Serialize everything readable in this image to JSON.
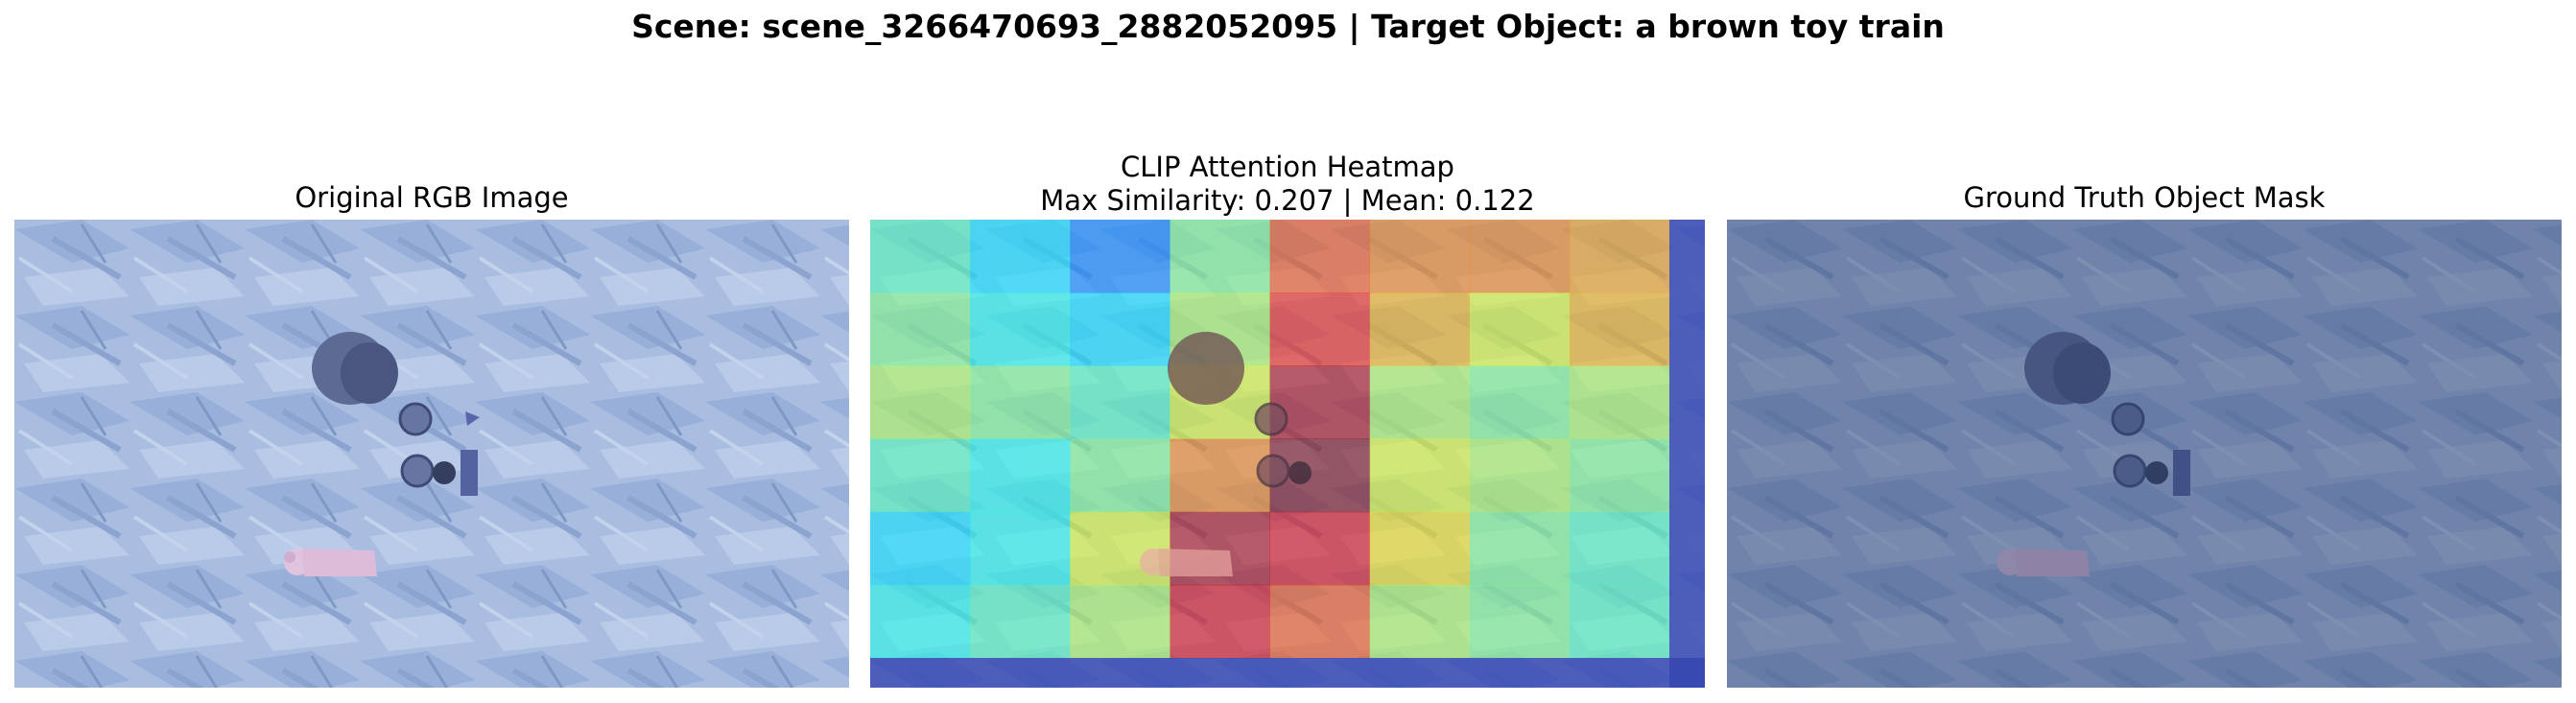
{
  "figure": {
    "suptitle": "Scene: scene_3266470693_2882052095 | Target Object: a brown toy train"
  },
  "panels": [
    {
      "title": "Original RGB Image"
    },
    {
      "title_line1": "CLIP Attention Heatmap",
      "title_line2": "Max Similarity: 0.207 | Mean: 0.122"
    },
    {
      "title": "Ground Truth Object Mask"
    }
  ],
  "heatmap": {
    "colormap": "jet",
    "overlay_alpha": 0.55,
    "grid_rows": 6,
    "grid_cols": 8,
    "cells": [
      [
        0.45,
        0.35,
        0.25,
        0.5,
        0.8,
        0.75,
        0.75,
        0.72
      ],
      [
        0.5,
        0.4,
        0.35,
        0.55,
        0.85,
        0.7,
        0.6,
        0.7
      ],
      [
        0.55,
        0.5,
        0.45,
        0.6,
        0.95,
        0.55,
        0.5,
        0.55
      ],
      [
        0.45,
        0.4,
        0.5,
        0.75,
        1.0,
        0.6,
        0.55,
        0.5
      ],
      [
        0.35,
        0.4,
        0.6,
        0.95,
        0.9,
        0.65,
        0.5,
        0.45
      ],
      [
        0.4,
        0.45,
        0.55,
        0.9,
        0.8,
        0.55,
        0.5,
        0.45
      ]
    ],
    "border_color": "#3545b0"
  },
  "mask": {
    "tint": "#2a3f6a",
    "opacity": 0.45
  }
}
